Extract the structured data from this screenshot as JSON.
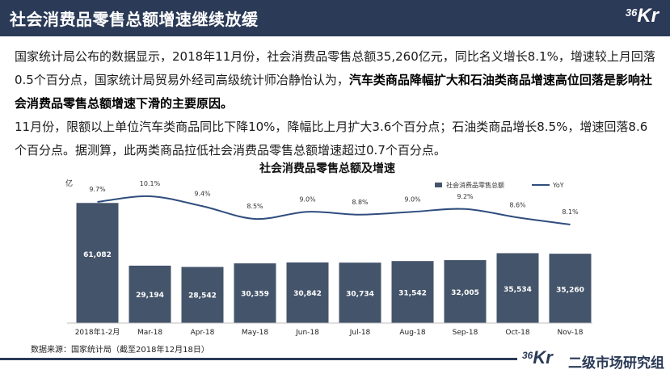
{
  "header": {
    "title": "社会消费品零售总额增速继续放缓",
    "logo_num": "36",
    "logo_kr": "Kr"
  },
  "paragraph1": {
    "text_a": "国家统计局公布的数据显示，2018年11月份，社会消费品零售总额35,260亿元，同比名义增长8.1%，增速较上月回落0.5个百分点，国家统计局贸易外经司高级统计师冶静怡认为，",
    "bold": "汽车类商品降幅扩大和石油类商品增速高位回落是影响社会消费品零售总额增速下滑的主要原因。"
  },
  "paragraph2": {
    "text": "11月份，限额以上单位汽车类商品同比下降10%，降幅比上月扩大3.6个百分点；石油类商品增长8.5%，增速回落8.6个百分点。据测算，此两类商品拉低社会消费品零售总额增速超过0.7个百分点。"
  },
  "chart_data": {
    "type": "bar",
    "title": "社会消费品零售总额及增速",
    "y_unit": "亿",
    "categories": [
      "2018年1-2月",
      "Mar-18",
      "Apr-18",
      "May-18",
      "Jun-18",
      "Jul-18",
      "Aug-18",
      "Sep-18",
      "Oct-18",
      "Nov-18"
    ],
    "series": [
      {
        "name": "社会消费品零售总额",
        "kind": "bar",
        "values": [
          61082,
          29194,
          28542,
          30359,
          30842,
          30734,
          31542,
          32005,
          35534,
          35260
        ],
        "labels": [
          "61,082",
          "29,194",
          "28,542",
          "30,359",
          "30,842",
          "30,734",
          "31,542",
          "32,005",
          "35,534",
          "35,260"
        ],
        "color": "#44546a"
      },
      {
        "name": "YoY",
        "kind": "line",
        "values": [
          9.7,
          10.1,
          9.4,
          8.5,
          9.0,
          8.8,
          9.0,
          9.2,
          8.6,
          8.1
        ],
        "labels": [
          "9.7%",
          "10.1%",
          "9.4%",
          "8.5%",
          "9.0%",
          "8.8%",
          "9.0%",
          "9.2%",
          "8.6%",
          "8.1%"
        ],
        "color": "#2f4d7e"
      }
    ],
    "legend_position": "top-right",
    "grid": false
  },
  "source": "数据来源：国家统计局（截至2018年12月18日）",
  "footer": {
    "logo_num": "36",
    "logo_kr": "Kr",
    "text": "二级市场研究组"
  }
}
